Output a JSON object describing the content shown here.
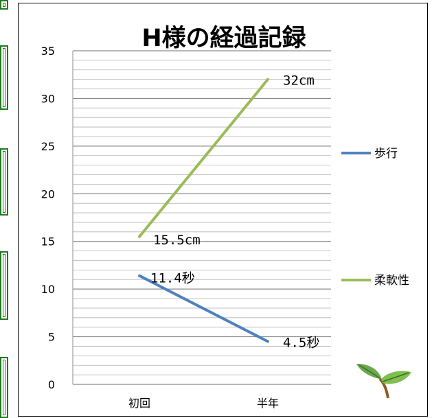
{
  "chart_data": {
    "type": "line",
    "title": "H様の経過記録",
    "categories": [
      "初回",
      "半年"
    ],
    "ylim": [
      0,
      35
    ],
    "yticks": [
      0,
      5,
      10,
      15,
      20,
      25,
      30,
      35
    ],
    "grid": true,
    "legend_position": "right",
    "series": [
      {
        "name": "歩行",
        "values": [
          11.4,
          4.5
        ],
        "labels": [
          "11.4秒",
          "4.5秒"
        ],
        "color": "#4f81bd"
      },
      {
        "name": "柔軟性",
        "values": [
          15.5,
          32
        ],
        "labels": [
          "15.5cm",
          "32cm"
        ],
        "color": "#9bbb59"
      }
    ]
  },
  "decoration": {
    "icon": "leaf-sprout-icon",
    "colors": [
      "#6aa84f",
      "#3d6b1f",
      "#8b5a2b"
    ]
  }
}
